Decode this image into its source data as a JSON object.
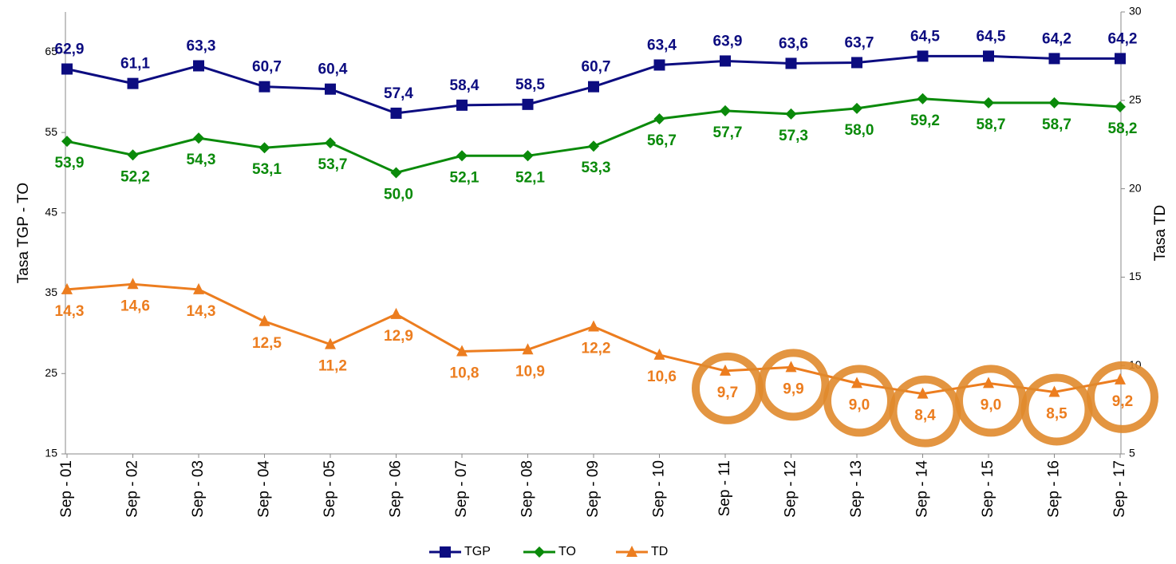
{
  "chart_data": {
    "type": "line",
    "categories": [
      "Sep - 01",
      "Sep - 02",
      "Sep - 03",
      "Sep - 04",
      "Sep - 05",
      "Sep - 06",
      "Sep - 07",
      "Sep - 08",
      "Sep - 09",
      "Sep - 10",
      "Sep - 11",
      "Sep - 12",
      "Sep - 13",
      "Sep - 14",
      "Sep - 15",
      "Sep - 16",
      "Sep - 17"
    ],
    "y_label": "Tasa TGP - TO",
    "y2_label": "Tasa TD",
    "ylim": [
      15,
      70
    ],
    "yticks": [
      15,
      25,
      35,
      45,
      55,
      65
    ],
    "y2lim": [
      5,
      30
    ],
    "y2ticks": [
      5,
      10,
      15,
      20,
      25,
      30
    ],
    "legend": "bottom",
    "series": [
      {
        "name": "TGP",
        "color": "#0c0c80",
        "marker": "square",
        "label_side": "above",
        "values": [
          62.9,
          61.1,
          63.3,
          60.7,
          60.4,
          57.4,
          58.4,
          58.5,
          60.7,
          63.4,
          63.9,
          63.6,
          63.7,
          64.5,
          64.5,
          64.2,
          64.2
        ],
        "value_labels": [
          "62,9",
          "61,1",
          "63,3",
          "60,7",
          "60,4",
          "57,4",
          "58,4",
          "58,5",
          "60,7",
          "63,4",
          "63,9",
          "63,6",
          "63,7",
          "64,5",
          "64,5",
          "64,2",
          "64,2"
        ]
      },
      {
        "name": "TO",
        "color": "#0a8a0a",
        "marker": "diamond",
        "label_side": "below",
        "values": [
          53.9,
          52.2,
          54.3,
          53.1,
          53.7,
          50.0,
          52.1,
          52.1,
          53.3,
          56.7,
          57.7,
          57.3,
          58.0,
          59.2,
          58.7,
          58.7,
          58.2
        ],
        "value_labels": [
          "53,9",
          "52,2",
          "54,3",
          "53,1",
          "53,7",
          "50,0",
          "52,1",
          "52,1",
          "53,3",
          "56,7",
          "57,7",
          "57,3",
          "58,0",
          "59,2",
          "58,7",
          "58,7",
          "58,2"
        ]
      },
      {
        "name": "TD",
        "color": "#ec7d1f",
        "marker": "triangle",
        "label_side": "below",
        "axis": "y2",
        "values": [
          14.3,
          14.6,
          14.3,
          12.5,
          11.2,
          12.9,
          10.8,
          10.9,
          12.2,
          10.6,
          9.7,
          9.9,
          9.0,
          8.4,
          9.0,
          8.5,
          9.2
        ],
        "value_labels": [
          "14,3",
          "14,6",
          "14,3",
          "12,5",
          "11,2",
          "12,9",
          "10,8",
          "10,9",
          "12,2",
          "10,6",
          "9,7",
          "9,9",
          "9,0",
          "8,4",
          "9,0",
          "8,5",
          "9,2"
        ]
      }
    ]
  }
}
